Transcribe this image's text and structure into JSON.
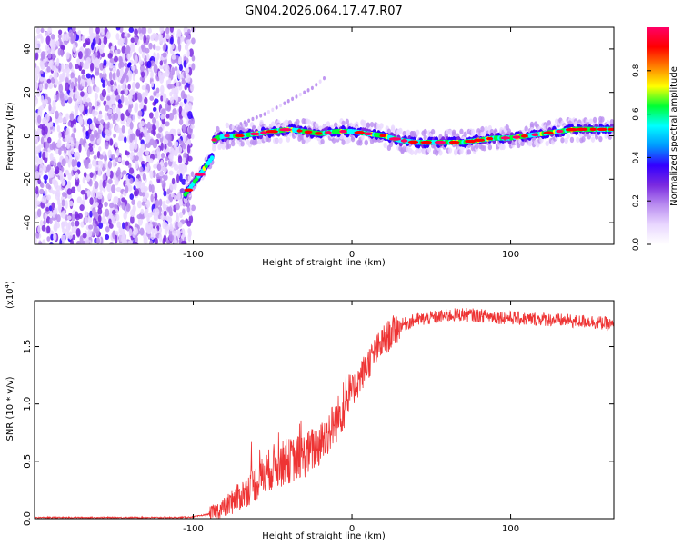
{
  "title": "GN04.2026.064.17.47.R07",
  "chart_data": [
    {
      "type": "heatmap",
      "title": "GN04.2026.064.17.47.R07",
      "xlabel": "Height of straight line (km)",
      "ylabel": "Frequency (Hz)",
      "xlim": [
        -200,
        165
      ],
      "ylim": [
        -50,
        50
      ],
      "xticks": [
        -100,
        0,
        100
      ],
      "yticks": [
        -40,
        -20,
        0,
        20,
        40
      ],
      "colorbar": {
        "label": "Normalized spectral amplitude",
        "range": [
          0,
          1
        ],
        "ticks": [
          0.0,
          0.2,
          0.4,
          0.6,
          0.8
        ],
        "colors": [
          "#ffffff",
          "#e9d7ff",
          "#b98cf0",
          "#7a2ae0",
          "#3300ff",
          "#0099ff",
          "#00ffff",
          "#00ff33",
          "#ffff00",
          "#ff8000",
          "#ff0000",
          "#ff0066"
        ]
      },
      "noise_region_x": [
        -200,
        -100
      ],
      "ridge": {
        "x": [
          -105,
          -100,
          -95,
          -90,
          -88,
          -87,
          -85,
          -80,
          -70,
          -60,
          -50,
          -40,
          -30,
          -20,
          -10,
          0,
          10,
          20,
          30,
          40,
          50,
          60,
          70,
          80,
          90,
          100,
          110,
          120,
          130,
          140,
          150,
          160,
          165
        ],
        "y": [
          -27,
          -22,
          -17,
          -12,
          -10,
          -2,
          -1,
          0,
          0,
          1,
          2,
          3,
          2,
          1,
          2,
          2,
          1,
          0,
          -2,
          -3,
          -3,
          -3,
          -3,
          -2,
          -1,
          -1,
          0,
          1,
          2,
          3,
          3,
          3,
          3
        ]
      },
      "branch": {
        "x": [
          -75,
          -65,
          -55,
          -45,
          -35,
          -25,
          -15
        ],
        "y": [
          4,
          7,
          10,
          14,
          18,
          22,
          28
        ]
      },
      "isolated_feature": {
        "x": [
          -145,
          -140
        ],
        "y": [
          25,
          33
        ]
      }
    },
    {
      "type": "line",
      "xlabel": "Height of straight line (km)",
      "ylabel": "SNR (10 * v/v)",
      "y_scale_label": "(x10",
      "y_scale_exp": "4",
      "y_scale_close": ")",
      "xlim": [
        -200,
        165
      ],
      "ylim": [
        0,
        1.9
      ],
      "xticks": [
        -100,
        0,
        100
      ],
      "yticks": [
        0.0,
        0.5,
        1.0,
        1.5
      ],
      "color": "#ee3333",
      "series": [
        {
          "name": "SNR",
          "x": [
            -200,
            -150,
            -110,
            -100,
            -90,
            -80,
            -70,
            -60,
            -50,
            -40,
            -30,
            -20,
            -10,
            0,
            10,
            20,
            30,
            40,
            50,
            60,
            70,
            80,
            90,
            100,
            110,
            120,
            130,
            140,
            150,
            160,
            165
          ],
          "y": [
            0.01,
            0.01,
            0.01,
            0.015,
            0.04,
            0.1,
            0.2,
            0.32,
            0.45,
            0.5,
            0.55,
            0.65,
            0.85,
            1.1,
            1.35,
            1.55,
            1.68,
            1.73,
            1.75,
            1.77,
            1.78,
            1.77,
            1.76,
            1.75,
            1.74,
            1.74,
            1.73,
            1.72,
            1.72,
            1.7,
            1.68
          ]
        }
      ]
    }
  ]
}
